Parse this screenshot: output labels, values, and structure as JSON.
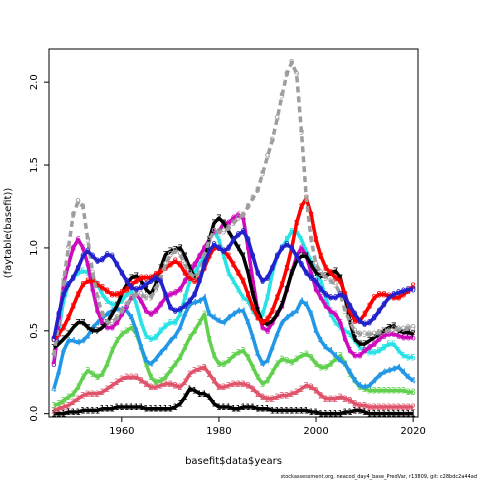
{
  "chart_data": {
    "type": "line",
    "xlabel": "basefit$data$years",
    "ylabel": "(faytable(basefit))",
    "footnote": "stockassessment.org, neacod_day4_base_PredVar, r13809, git: c28bdc2a44ad",
    "xlim": [
      1945,
      2021
    ],
    "ylim": [
      -0.02,
      2.2
    ],
    "x_ticks": [
      "1960",
      "1980",
      "2000",
      "2020"
    ],
    "y_ticks": [
      "0.0",
      "0.5",
      "1.0",
      "1.5",
      "2.0"
    ],
    "grid": false,
    "legend": "none",
    "x": [
      1946,
      1947,
      1948,
      1949,
      1950,
      1951,
      1952,
      1953,
      1954,
      1955,
      1956,
      1957,
      1958,
      1959,
      1960,
      1961,
      1962,
      1963,
      1964,
      1965,
      1966,
      1967,
      1968,
      1969,
      1970,
      1971,
      1972,
      1973,
      1974,
      1975,
      1976,
      1977,
      1978,
      1979,
      1980,
      1981,
      1982,
      1983,
      1984,
      1985,
      1986,
      1987,
      1988,
      1989,
      1990,
      1991,
      1992,
      1993,
      1994,
      1995,
      1996,
      1997,
      1998,
      1999,
      2000,
      2001,
      2002,
      2003,
      2004,
      2005,
      2006,
      2007,
      2008,
      2009,
      2010,
      2011,
      2012,
      2013,
      2014,
      2015,
      2016,
      2017,
      2018,
      2019,
      2020
    ],
    "series": [
      {
        "label": "1",
        "color": "#000000",
        "values": [
          0.0,
          0.0,
          0.0,
          0.01,
          0.01,
          0.01,
          0.02,
          0.02,
          0.02,
          0.02,
          0.03,
          0.03,
          0.03,
          0.04,
          0.04,
          0.04,
          0.04,
          0.04,
          0.04,
          0.03,
          0.03,
          0.03,
          0.03,
          0.03,
          0.03,
          0.04,
          0.06,
          0.1,
          0.15,
          0.14,
          0.12,
          0.12,
          0.1,
          0.06,
          0.04,
          0.04,
          0.04,
          0.03,
          0.03,
          0.04,
          0.04,
          0.04,
          0.03,
          0.03,
          0.03,
          0.02,
          0.02,
          0.02,
          0.02,
          0.02,
          0.02,
          0.02,
          0.02,
          0.01,
          0.01,
          0.0,
          0.0,
          0.0,
          0.0,
          0.0,
          0.01,
          0.01,
          0.02,
          0.02,
          0.01,
          0.0,
          0.0,
          0.0,
          0.0,
          0.0,
          0.0,
          0.0,
          0.0,
          0.0,
          0.0
        ]
      },
      {
        "label": "2",
        "color": "#df536b",
        "values": [
          0.02,
          0.03,
          0.04,
          0.05,
          0.07,
          0.09,
          0.11,
          0.12,
          0.12,
          0.12,
          0.13,
          0.15,
          0.17,
          0.19,
          0.21,
          0.22,
          0.22,
          0.22,
          0.2,
          0.18,
          0.16,
          0.16,
          0.17,
          0.18,
          0.18,
          0.17,
          0.16,
          0.19,
          0.24,
          0.26,
          0.27,
          0.28,
          0.24,
          0.2,
          0.16,
          0.16,
          0.17,
          0.18,
          0.18,
          0.18,
          0.17,
          0.15,
          0.12,
          0.1,
          0.09,
          0.09,
          0.1,
          0.11,
          0.11,
          0.12,
          0.13,
          0.15,
          0.17,
          0.16,
          0.14,
          0.11,
          0.09,
          0.09,
          0.09,
          0.1,
          0.09,
          0.08,
          0.06,
          0.05,
          0.05,
          0.04,
          0.04,
          0.04,
          0.04,
          0.04,
          0.04,
          0.04,
          0.04,
          0.04,
          0.04
        ]
      },
      {
        "label": "3",
        "color": "#61d04f",
        "values": [
          0.05,
          0.06,
          0.08,
          0.1,
          0.12,
          0.16,
          0.22,
          0.26,
          0.24,
          0.22,
          0.24,
          0.3,
          0.38,
          0.44,
          0.48,
          0.5,
          0.52,
          0.48,
          0.4,
          0.3,
          0.22,
          0.19,
          0.2,
          0.22,
          0.26,
          0.3,
          0.34,
          0.4,
          0.46,
          0.5,
          0.55,
          0.6,
          0.45,
          0.35,
          0.3,
          0.3,
          0.32,
          0.35,
          0.37,
          0.38,
          0.34,
          0.28,
          0.22,
          0.18,
          0.2,
          0.25,
          0.3,
          0.33,
          0.32,
          0.31,
          0.33,
          0.35,
          0.36,
          0.34,
          0.3,
          0.28,
          0.28,
          0.3,
          0.33,
          0.35,
          0.3,
          0.24,
          0.2,
          0.16,
          0.15,
          0.14,
          0.14,
          0.14,
          0.14,
          0.14,
          0.14,
          0.14,
          0.14,
          0.13,
          0.13
        ]
      },
      {
        "label": "4",
        "color": "#2297e6",
        "values": [
          0.15,
          0.25,
          0.38,
          0.44,
          0.44,
          0.43,
          0.44,
          0.47,
          0.52,
          0.55,
          0.58,
          0.6,
          0.62,
          0.63,
          0.63,
          0.62,
          0.58,
          0.5,
          0.4,
          0.32,
          0.3,
          0.33,
          0.37,
          0.4,
          0.44,
          0.47,
          0.52,
          0.6,
          0.66,
          0.67,
          0.68,
          0.7,
          0.6,
          0.58,
          0.56,
          0.55,
          0.58,
          0.6,
          0.62,
          0.62,
          0.55,
          0.46,
          0.36,
          0.3,
          0.32,
          0.4,
          0.48,
          0.55,
          0.58,
          0.6,
          0.62,
          0.68,
          0.66,
          0.6,
          0.5,
          0.44,
          0.4,
          0.38,
          0.35,
          0.32,
          0.3,
          0.25,
          0.2,
          0.17,
          0.16,
          0.17,
          0.2,
          0.23,
          0.25,
          0.26,
          0.27,
          0.28,
          0.25,
          0.22,
          0.2
        ]
      },
      {
        "label": "5",
        "color": "#28e2e5",
        "values": [
          0.3,
          0.5,
          0.68,
          0.78,
          0.82,
          0.85,
          0.86,
          0.85,
          0.82,
          0.78,
          0.72,
          0.68,
          0.66,
          0.66,
          0.68,
          0.72,
          0.74,
          0.66,
          0.55,
          0.47,
          0.45,
          0.46,
          0.5,
          0.53,
          0.55,
          0.55,
          0.6,
          0.7,
          0.8,
          0.85,
          0.9,
          0.95,
          1.05,
          1.1,
          1.05,
          0.95,
          0.85,
          0.8,
          0.75,
          0.7,
          0.68,
          0.62,
          0.58,
          0.6,
          0.7,
          0.85,
          0.95,
          1.0,
          1.05,
          1.1,
          1.1,
          1.05,
          0.98,
          0.92,
          0.85,
          0.8,
          0.7,
          0.6,
          0.55,
          0.52,
          0.5,
          0.48,
          0.44,
          0.4,
          0.38,
          0.37,
          0.37,
          0.38,
          0.4,
          0.42,
          0.42,
          0.38,
          0.35,
          0.34,
          0.34
        ]
      },
      {
        "label": "6",
        "color": "#cd0bbc",
        "values": [
          0.3,
          0.55,
          0.78,
          0.9,
          1.0,
          1.05,
          1.0,
          0.9,
          0.75,
          0.62,
          0.55,
          0.52,
          0.52,
          0.55,
          0.6,
          0.65,
          0.7,
          0.72,
          0.68,
          0.62,
          0.6,
          0.62,
          0.66,
          0.7,
          0.72,
          0.73,
          0.75,
          0.8,
          0.85,
          0.9,
          0.95,
          1.0,
          1.05,
          1.1,
          1.1,
          1.15,
          1.15,
          1.18,
          1.2,
          1.18,
          1.0,
          0.8,
          0.62,
          0.52,
          0.5,
          0.55,
          0.6,
          0.65,
          0.75,
          0.85,
          0.95,
          1.0,
          0.95,
          0.85,
          0.75,
          0.7,
          0.65,
          0.62,
          0.6,
          0.55,
          0.45,
          0.38,
          0.35,
          0.35,
          0.38,
          0.4,
          0.42,
          0.45,
          0.47,
          0.48,
          0.48,
          0.47,
          0.46,
          0.46,
          0.46
        ]
      },
      {
        "label": "7",
        "color": "#000000",
        "values": [
          0.4,
          0.42,
          0.45,
          0.48,
          0.52,
          0.55,
          0.55,
          0.52,
          0.5,
          0.5,
          0.52,
          0.55,
          0.6,
          0.65,
          0.72,
          0.78,
          0.82,
          0.83,
          0.8,
          0.75,
          0.72,
          0.78,
          0.88,
          0.96,
          0.98,
          0.99,
          1.0,
          0.95,
          0.88,
          0.82,
          0.8,
          0.9,
          1.05,
          1.15,
          1.18,
          1.15,
          1.1,
          1.05,
          1.0,
          0.95,
          0.85,
          0.72,
          0.62,
          0.55,
          0.54,
          0.56,
          0.6,
          0.66,
          0.75,
          0.85,
          0.92,
          0.95,
          0.95,
          0.9,
          0.85,
          0.83,
          0.83,
          0.85,
          0.86,
          0.82,
          0.7,
          0.55,
          0.45,
          0.42,
          0.42,
          0.44,
          0.46,
          0.48,
          0.5,
          0.52,
          0.53,
          0.5,
          0.49,
          0.49,
          0.48
        ]
      },
      {
        "label": "8",
        "color": "#ff0000",
        "values": [
          0.45,
          0.48,
          0.52,
          0.58,
          0.65,
          0.72,
          0.78,
          0.8,
          0.8,
          0.78,
          0.76,
          0.74,
          0.72,
          0.72,
          0.73,
          0.75,
          0.78,
          0.8,
          0.82,
          0.82,
          0.82,
          0.84,
          0.86,
          0.88,
          0.9,
          0.92,
          0.9,
          0.85,
          0.82,
          0.8,
          0.82,
          0.88,
          0.95,
          1.0,
          1.0,
          0.98,
          0.95,
          0.9,
          0.85,
          0.8,
          0.72,
          0.64,
          0.58,
          0.55,
          0.57,
          0.62,
          0.7,
          0.78,
          0.88,
          1.0,
          1.15,
          1.25,
          1.3,
          1.2,
          1.05,
          0.95,
          0.88,
          0.85,
          0.82,
          0.8,
          0.72,
          0.62,
          0.56,
          0.56,
          0.6,
          0.65,
          0.7,
          0.72,
          0.72,
          0.71,
          0.7,
          0.7,
          0.72,
          0.74,
          0.77
        ]
      },
      {
        "label": "9",
        "color": "#9e9e9e",
        "values": [
          0.35,
          0.55,
          0.8,
          1.0,
          1.2,
          1.28,
          1.25,
          1.05,
          0.85,
          0.7,
          0.6,
          0.55,
          0.55,
          0.58,
          0.62,
          0.66,
          0.7,
          0.72,
          0.72,
          0.7,
          0.7,
          0.75,
          0.82,
          0.9,
          0.96,
          0.98,
          0.96,
          0.9,
          0.85,
          0.82,
          0.85,
          0.95,
          1.05,
          1.1,
          1.1,
          1.1,
          1.12,
          1.15,
          1.18,
          1.2,
          1.25,
          1.3,
          1.35,
          1.45,
          1.55,
          1.65,
          1.78,
          1.92,
          2.05,
          2.12,
          2.05,
          1.7,
          1.3,
          1.05,
          0.9,
          0.85,
          0.82,
          0.8,
          0.78,
          0.72,
          0.62,
          0.55,
          0.5,
          0.48,
          0.48,
          0.48,
          0.48,
          0.49,
          0.5,
          0.5,
          0.51,
          0.51,
          0.51,
          0.52,
          0.52
        ]
      },
      {
        "label": "0",
        "color": "#2222cc",
        "values": [
          0.45,
          0.6,
          0.72,
          0.78,
          0.82,
          0.88,
          0.95,
          0.98,
          0.95,
          0.92,
          0.93,
          0.96,
          0.95,
          0.9,
          0.85,
          0.8,
          0.76,
          0.75,
          0.76,
          0.78,
          0.8,
          0.82,
          0.8,
          0.72,
          0.64,
          0.62,
          0.63,
          0.65,
          0.68,
          0.72,
          0.8,
          0.9,
          0.98,
          1.02,
          1.0,
          0.98,
          1.0,
          1.05,
          1.08,
          1.1,
          1.05,
          0.95,
          0.85,
          0.8,
          0.82,
          0.88,
          0.95,
          1.0,
          1.02,
          1.0,
          0.95,
          0.9,
          0.85,
          0.82,
          0.8,
          0.75,
          0.72,
          0.7,
          0.7,
          0.72,
          0.7,
          0.65,
          0.6,
          0.56,
          0.54,
          0.55,
          0.58,
          0.62,
          0.66,
          0.7,
          0.72,
          0.73,
          0.74,
          0.75,
          0.75
        ]
      }
    ]
  }
}
